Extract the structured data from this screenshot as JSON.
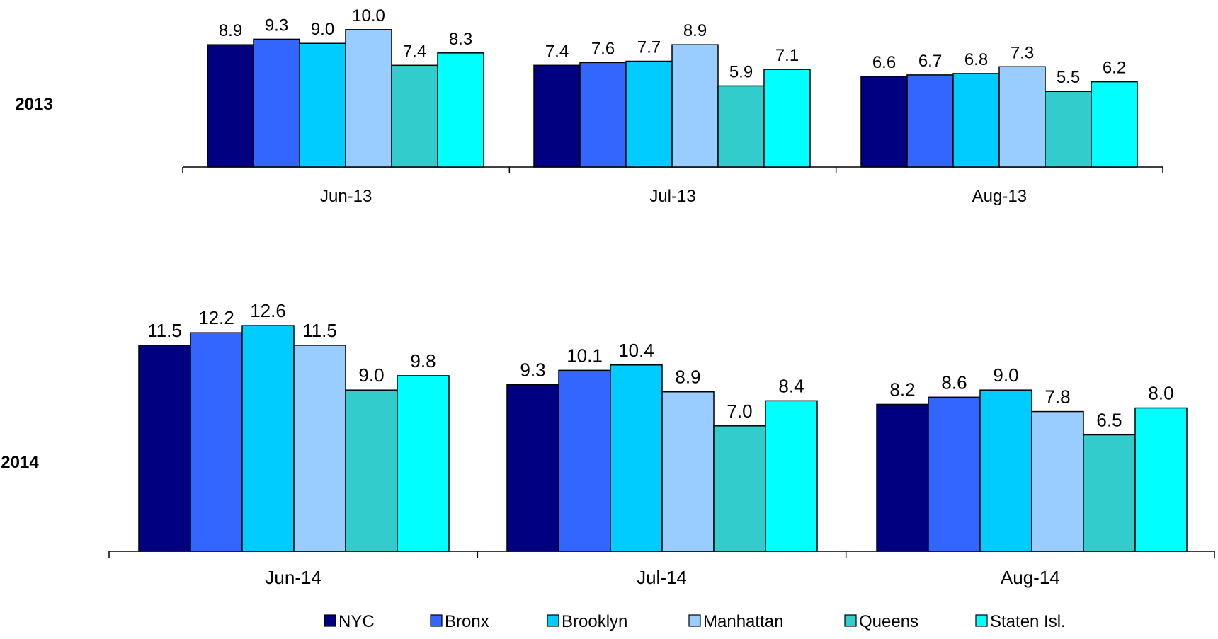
{
  "chart_data": [
    {
      "type": "bar",
      "title": "2013",
      "categories": [
        "Jun-13",
        "Jul-13",
        "Aug-13"
      ],
      "series": [
        {
          "name": "NYC",
          "color": "#000080",
          "values": [
            8.9,
            7.4,
            6.6
          ]
        },
        {
          "name": "Bronx",
          "color": "#3366FF",
          "values": [
            9.3,
            7.6,
            6.7
          ]
        },
        {
          "name": "Brooklyn",
          "color": "#00CCFF",
          "values": [
            9.0,
            7.7,
            6.8
          ]
        },
        {
          "name": "Manhattan",
          "color": "#99CCFF",
          "values": [
            10.0,
            8.9,
            7.3
          ]
        },
        {
          "name": "Queens",
          "color": "#33CCCC",
          "values": [
            7.4,
            5.9,
            5.5
          ]
        },
        {
          "name": "Staten Isl.",
          "color": "#00FFFF",
          "values": [
            8.3,
            7.1,
            6.2
          ]
        }
      ],
      "ylim": [
        0,
        10.3
      ],
      "grid": false,
      "legend": "bottom"
    },
    {
      "type": "bar",
      "title": "2014",
      "categories": [
        "Jun-14",
        "Jul-14",
        "Aug-14"
      ],
      "series": [
        {
          "name": "NYC",
          "color": "#000080",
          "values": [
            11.5,
            9.3,
            8.2
          ]
        },
        {
          "name": "Bronx",
          "color": "#3366FF",
          "values": [
            12.2,
            10.1,
            8.6
          ]
        },
        {
          "name": "Brooklyn",
          "color": "#00CCFF",
          "values": [
            12.6,
            10.4,
            9.0
          ]
        },
        {
          "name": "Manhattan",
          "color": "#99CCFF",
          "values": [
            11.5,
            8.9,
            7.8
          ]
        },
        {
          "name": "Queens",
          "color": "#33CCCC",
          "values": [
            9.0,
            7.0,
            6.5
          ]
        },
        {
          "name": "Staten Isl.",
          "color": "#00FFFF",
          "values": [
            9.8,
            8.4,
            8.0
          ]
        }
      ],
      "ylim": [
        0,
        12.8
      ],
      "grid": false,
      "legend": "bottom"
    }
  ],
  "legend": [
    {
      "name": "NYC",
      "color": "#000080"
    },
    {
      "name": "Bronx",
      "color": "#3366FF"
    },
    {
      "name": "Brooklyn",
      "color": "#00CCFF"
    },
    {
      "name": "Manhattan",
      "color": "#99CCFF"
    },
    {
      "name": "Queens",
      "color": "#33CCCC"
    },
    {
      "name": "Staten Isl.",
      "color": "#00FFFF"
    }
  ]
}
